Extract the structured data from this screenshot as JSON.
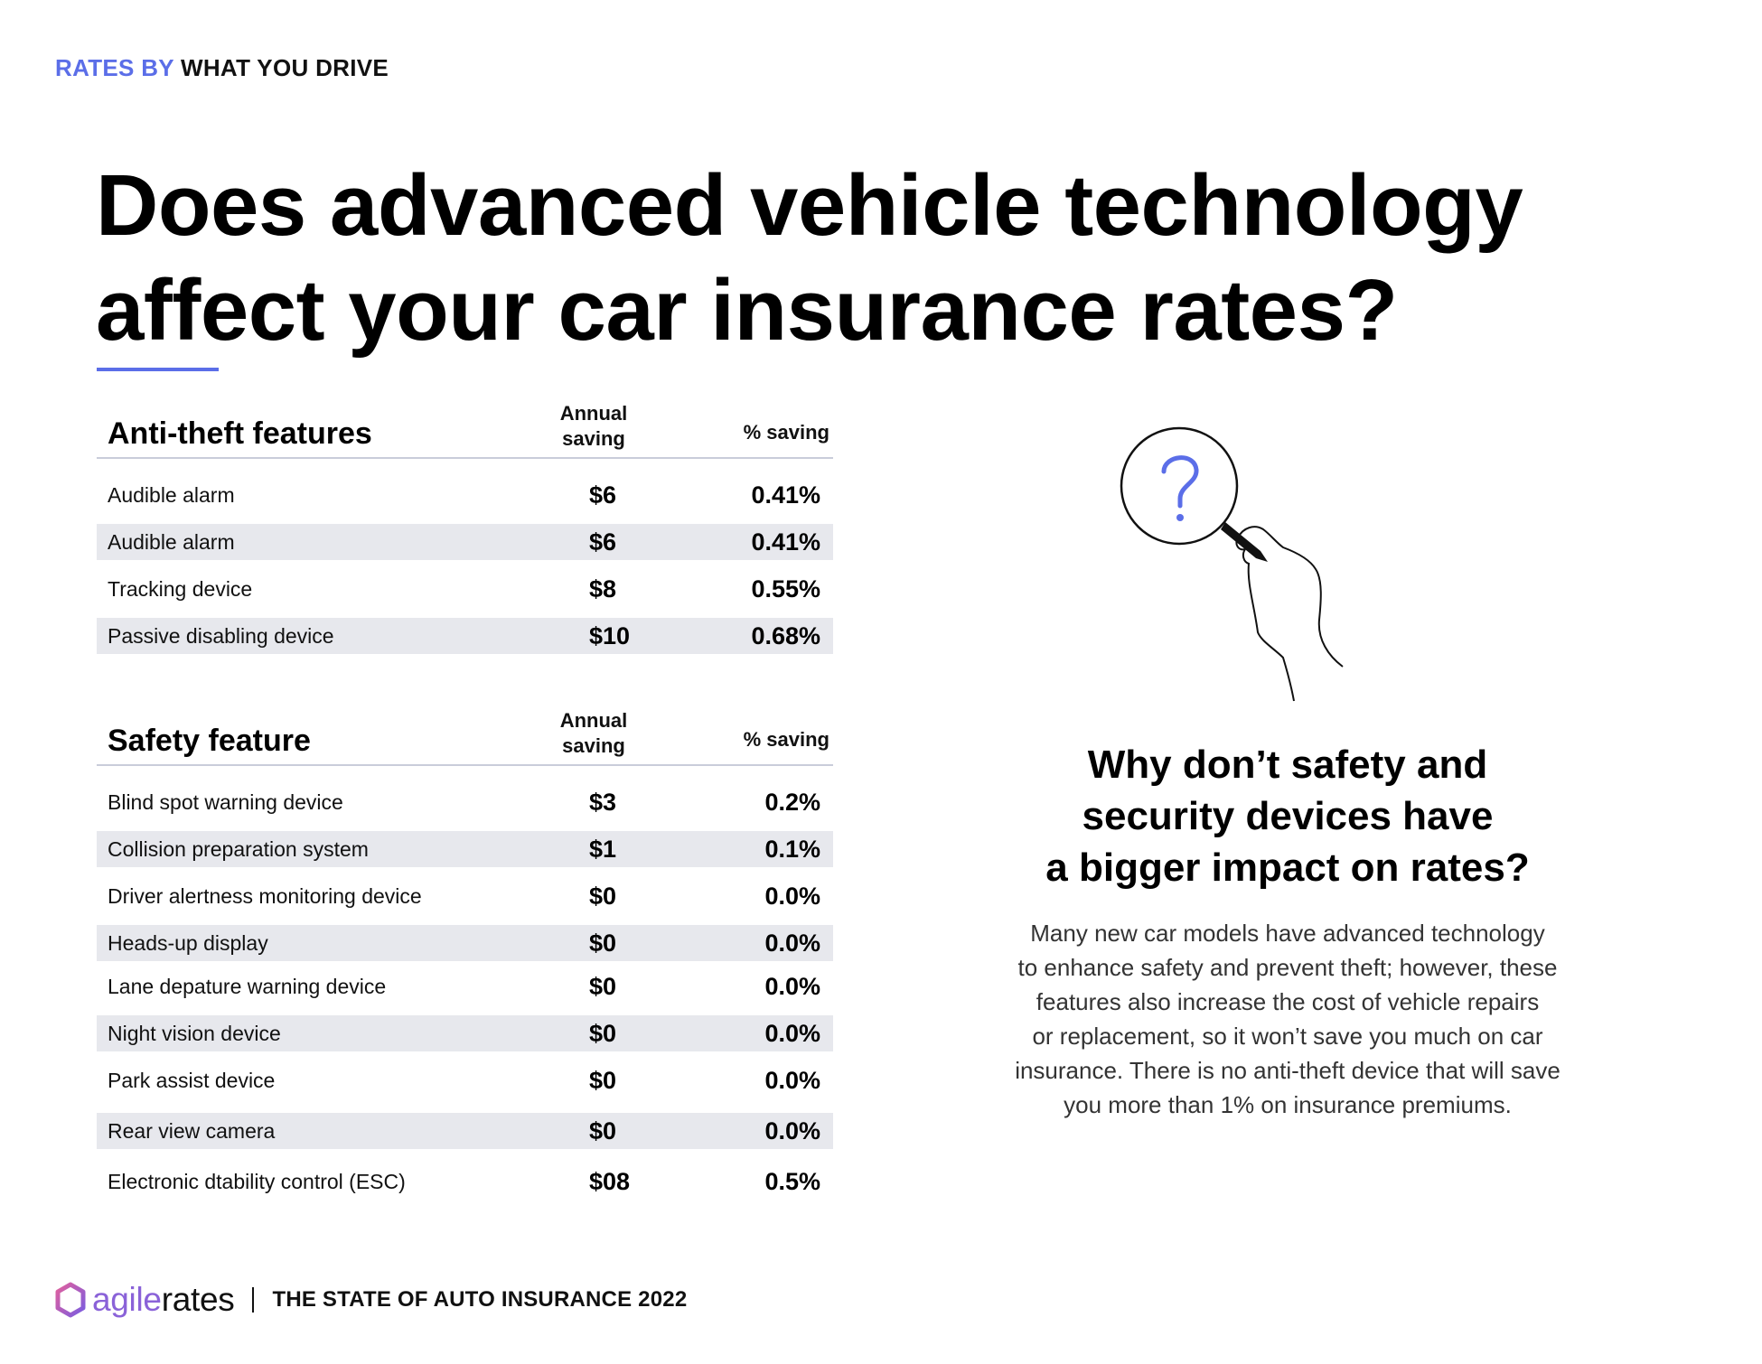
{
  "kicker": {
    "part1": "RATES BY",
    "part2": "WHAT YOU DRIVE"
  },
  "headline": {
    "line1": "Does advanced vehicle technology",
    "line2": "affect your car insurance rates?"
  },
  "colors": {
    "accent": "#5b6ee8",
    "row_shade": "#e7e8ed",
    "brand_purple": "#8a62d8"
  },
  "anti_theft": {
    "title": "Anti-theft features",
    "col_annual": "Annual\nsaving",
    "col_pct": "% saving",
    "rows": [
      {
        "name": "Audible alarm",
        "annual": "$6",
        "pct": "0.41%"
      },
      {
        "name": "Audible alarm",
        "annual": "$6",
        "pct": "0.41%"
      },
      {
        "name": "Tracking device",
        "annual": "$8",
        "pct": "0.55%"
      },
      {
        "name": "Passive disabling device",
        "annual": "$10",
        "pct": "0.68%"
      }
    ]
  },
  "safety": {
    "title": "Safety feature",
    "col_annual": "Annual\nsaving",
    "col_pct": "% saving",
    "rows": [
      {
        "name": "Blind spot warning device",
        "annual": "$3",
        "pct": "0.2%"
      },
      {
        "name": "Collision preparation system",
        "annual": "$1",
        "pct": "0.1%"
      },
      {
        "name": "Driver alertness monitoring device",
        "annual": "$0",
        "pct": "0.0%"
      },
      {
        "name": "Heads-up display",
        "annual": "$0",
        "pct": "0.0%"
      },
      {
        "name": "Lane depature warning device",
        "annual": "$0",
        "pct": "0.0%"
      },
      {
        "name": "Night vision device",
        "annual": "$0",
        "pct": "0.0%"
      },
      {
        "name": "Park assist device",
        "annual": "$0",
        "pct": "0.0%"
      },
      {
        "name": "Rear view camera",
        "annual": "$0",
        "pct": "0.0%"
      },
      {
        "name": "Electronic dtability control (ESC)",
        "annual": "$08",
        "pct": "0.5%"
      }
    ]
  },
  "illustration": {
    "icon": "magnifying-glass-question-icon"
  },
  "side": {
    "title_lines": [
      "Why don’t safety and",
      "security devices have",
      "a bigger impact on rates?"
    ],
    "text_lines": [
      "Many new car models have advanced technology",
      "to enhance safety and prevent theft; however, these",
      "features also increase the cost of vehicle repairs",
      "or replacement, so it won’t save you much on car",
      "insurance. There is no anti-theft device that will save",
      "you more than 1% on insurance premiums."
    ]
  },
  "footer": {
    "logo_part1": "agile",
    "logo_part2": "rates",
    "title": "THE STATE OF AUTO INSURANCE 2022"
  }
}
